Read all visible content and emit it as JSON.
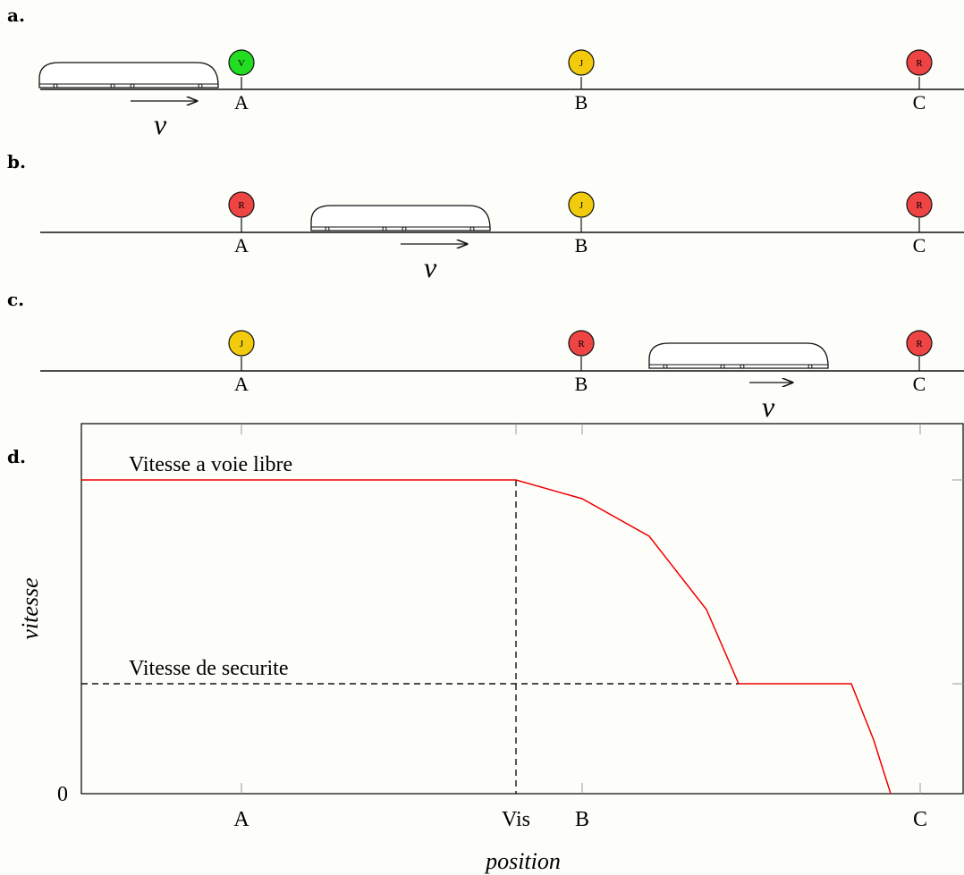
{
  "panels": [
    {
      "letter": "a.",
      "train_side": "before-A",
      "signals": [
        {
          "station": "A",
          "aspect": "V",
          "color": "#22dd22"
        },
        {
          "station": "B",
          "aspect": "J",
          "color": "#f2cc0c"
        },
        {
          "station": "C",
          "aspect": "R",
          "color": "#ee4444"
        }
      ]
    },
    {
      "letter": "b.",
      "train_side": "between-A-B",
      "signals": [
        {
          "station": "A",
          "aspect": "R",
          "color": "#ee4444"
        },
        {
          "station": "B",
          "aspect": "J",
          "color": "#f2cc0c"
        },
        {
          "station": "C",
          "aspect": "R",
          "color": "#ee4444"
        }
      ]
    },
    {
      "letter": "c.",
      "train_side": "between-B-C",
      "signals": [
        {
          "station": "A",
          "aspect": "J",
          "color": "#f2cc0c"
        },
        {
          "station": "B",
          "aspect": "R",
          "color": "#ee4444"
        },
        {
          "station": "C",
          "aspect": "R",
          "color": "#ee4444"
        }
      ]
    }
  ],
  "velocity_symbol": "v",
  "chart_panel_letter": "d.",
  "chart_data": {
    "type": "line",
    "xlabel": "position",
    "ylabel": "vitesse",
    "x_ticks": [
      "A",
      "Vis",
      "B",
      "C"
    ],
    "y_ticks": [
      "0"
    ],
    "annotations": {
      "free_speed": "Vitesse a voie libre",
      "safety_speed": "Vitesse de securite"
    },
    "levels": {
      "free_speed": 1.0,
      "safety_speed": 0.35
    },
    "curve_color": "#ee0000"
  }
}
